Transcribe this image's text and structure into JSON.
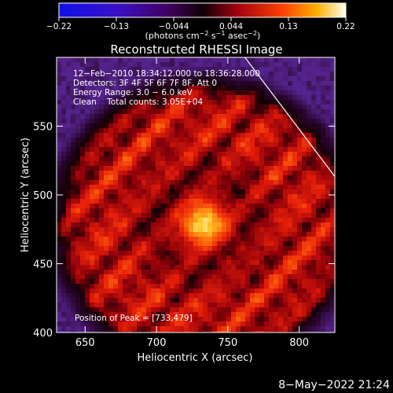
{
  "chart_data": {
    "type": "heatmap",
    "title": "Reconstructed RHESSI Image",
    "xlabel": "Heliocentric X (arcsec)",
    "ylabel": "Heliocentric Y (arcsec)",
    "xlim": [
      630,
      825
    ],
    "ylim": [
      400,
      600
    ],
    "x_ticks": [
      650,
      700,
      750,
      800
    ],
    "y_ticks": [
      400,
      450,
      500,
      550
    ],
    "colorbar": {
      "min": -0.22,
      "max": 0.22,
      "ticks": [
        "−0.22",
        "−0.13",
        "−0.044",
        "0.044",
        "0.13",
        "0.22"
      ],
      "unit_main": "(photons cm",
      "unit_exp1": "−2",
      "unit_mid": " s",
      "unit_exp2": "−1",
      "unit_mid2": " asec",
      "unit_exp3": "−2",
      "unit_end": ")"
    },
    "annotations": [
      "12−Feb−2010 18:34:12.000 to 18:36:28.000",
      "Detectors: 3F 4F 5F 6F 7F 8F, Att 0",
      "Energy Range: 3.0 − 6.0 keV",
      "Clean    Total counts: 3.05E+04"
    ],
    "peak_label": "Position of Peak = [733,479]",
    "peak": [
      733,
      479
    ],
    "ring_radius_arcsec": 70,
    "limb_line": [
      [
        762,
        600
      ],
      [
        826,
        512
      ]
    ]
  },
  "footer": {
    "date": "8−May−2022 21:24"
  }
}
